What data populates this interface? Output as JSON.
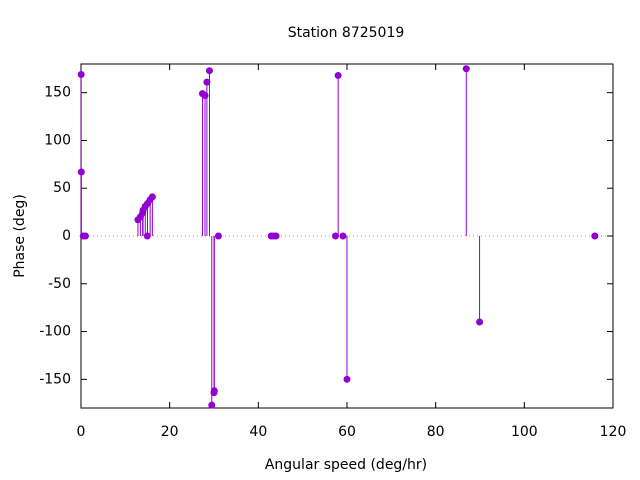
{
  "chart_data": {
    "type": "stem",
    "title": "Station 8725019",
    "x_label": "Angular speed (deg/hr)",
    "y_label": "Phase (deg)",
    "color": "#9400d3",
    "x": [
      0.04,
      0.08,
      0.5,
      1.0,
      12.85,
      13.4,
      13.9,
      14.0,
      14.5,
      14.96,
      15.0,
      15.6,
      16.1,
      27.4,
      27.97,
      28.4,
      28.98,
      29.5,
      30.0,
      30.08,
      31.0,
      42.9,
      43.5,
      44.0,
      57.4,
      58.0,
      59.1,
      60.0,
      86.9,
      89.9,
      115.9
    ],
    "values": [
      169,
      67,
      0,
      0,
      17,
      20,
      24,
      27,
      31,
      0,
      34,
      38,
      41,
      149,
      147,
      161,
      173,
      -177,
      -164,
      -162,
      0,
      0,
      0,
      0,
      0,
      168,
      0,
      -150,
      175,
      -90,
      0
    ],
    "xlim": [
      0,
      120
    ],
    "xticks": [
      0,
      20,
      40,
      60,
      80,
      100,
      120
    ],
    "ylim": [
      -180,
      180
    ],
    "yticks": [
      -150,
      -100,
      -50,
      0,
      50,
      100,
      150
    ]
  }
}
